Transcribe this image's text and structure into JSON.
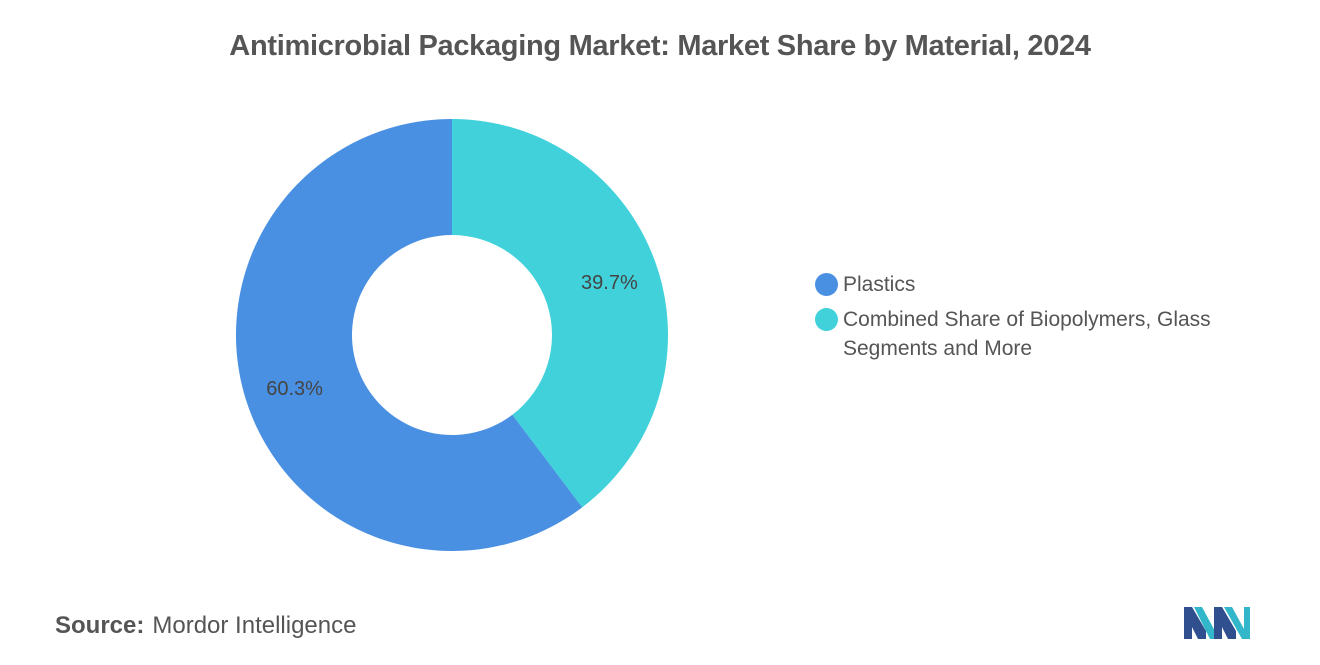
{
  "title": "Antimicrobial Packaging Market: Market Share by Material, 2024",
  "chart_data": {
    "type": "pie",
    "variant": "donut",
    "title": "Antimicrobial Packaging Market: Market Share by Material, 2024",
    "categories": [
      "Plastics",
      "Combined Share of Biopolymers, Glass Segments and More"
    ],
    "values": [
      60.3,
      39.7
    ],
    "value_labels": [
      "60.3%",
      "39.7%"
    ],
    "colors": [
      "#4a90e2",
      "#40d1db"
    ],
    "legend_position": "right"
  },
  "legend": {
    "items": [
      {
        "label": "Plastics",
        "color": "#4a90e2"
      },
      {
        "label": "Combined Share of Biopolymers, Glass Segments and More",
        "color": "#40d1db"
      }
    ]
  },
  "source": {
    "label": "Source:",
    "value": "Mordor Intelligence"
  },
  "logo": {
    "icon": "mordor-intelligence-logo-icon",
    "colors": [
      "#2f4f8f",
      "#31b7c9"
    ]
  }
}
